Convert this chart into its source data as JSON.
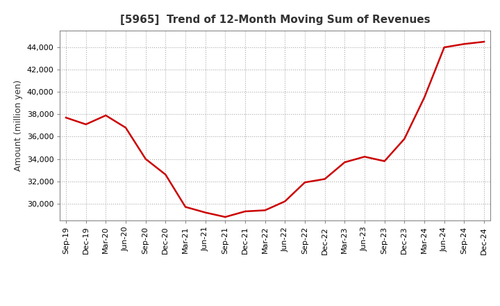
{
  "title": "[5965]  Trend of 12-Month Moving Sum of Revenues",
  "ylabel": "Amount (million yen)",
  "line_color": "#cc0000",
  "line_width": 1.8,
  "background_color": "#ffffff",
  "grid_color": "#aaaaaa",
  "x_labels": [
    "Sep-19",
    "Dec-19",
    "Mar-20",
    "Jun-20",
    "Sep-20",
    "Dec-20",
    "Mar-21",
    "Jun-21",
    "Sep-21",
    "Dec-21",
    "Mar-22",
    "Jun-22",
    "Sep-22",
    "Dec-22",
    "Mar-23",
    "Jun-23",
    "Sep-23",
    "Dec-23",
    "Mar-24",
    "Jun-24",
    "Sep-24",
    "Dec-24"
  ],
  "values": [
    37700,
    37100,
    37900,
    36800,
    34000,
    32600,
    29700,
    29200,
    28800,
    29300,
    29400,
    30200,
    31900,
    32200,
    33700,
    34200,
    33800,
    35800,
    39500,
    44000,
    44300,
    44500
  ],
  "ylim_min": 28500,
  "ylim_max": 45500,
  "yticks": [
    30000,
    32000,
    34000,
    36000,
    38000,
    40000,
    42000,
    44000
  ],
  "title_fontsize": 11,
  "title_color": "#333333",
  "tick_fontsize": 8,
  "ylabel_fontsize": 9
}
